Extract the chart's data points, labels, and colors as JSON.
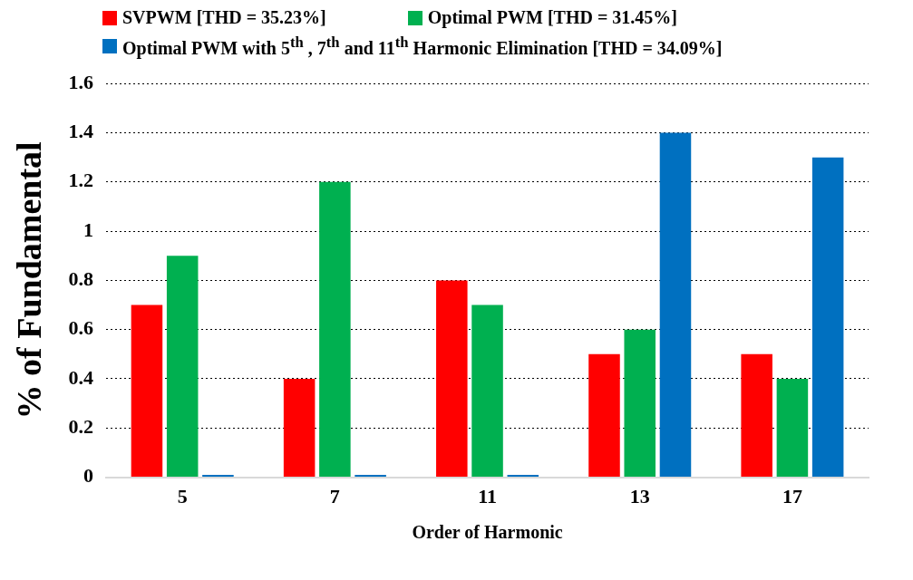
{
  "chart_data": {
    "type": "bar",
    "xlabel": "Order of Harmonic",
    "ylabel": "% of Fundamental",
    "categories": [
      "5",
      "7",
      "11",
      "13",
      "17"
    ],
    "series": [
      {
        "name": "SVPWM [THD = 35.23%]",
        "color": "#ff0000",
        "values": [
          0.7,
          0.4,
          0.8,
          0.5,
          0.5
        ]
      },
      {
        "name": "Optimal PWM [THD = 31.45%]",
        "color": "#00b050",
        "values": [
          0.9,
          1.2,
          0.7,
          0.6,
          0.4
        ]
      },
      {
        "name": "Optimal PWM with 5$^{th}$ , 7$^{th}$ and 11$^{th}$ Harmonic Elimination [THD = 34.09%]",
        "color": "#0070c0",
        "values": [
          0.01,
          0.01,
          0.01,
          1.4,
          1.3
        ]
      }
    ],
    "ylim": [
      0,
      1.6
    ],
    "yticks": [
      0,
      0.2,
      0.4,
      0.6,
      0.8,
      1,
      1.2,
      1.4,
      1.6
    ],
    "grid": "y",
    "legend": "top"
  }
}
